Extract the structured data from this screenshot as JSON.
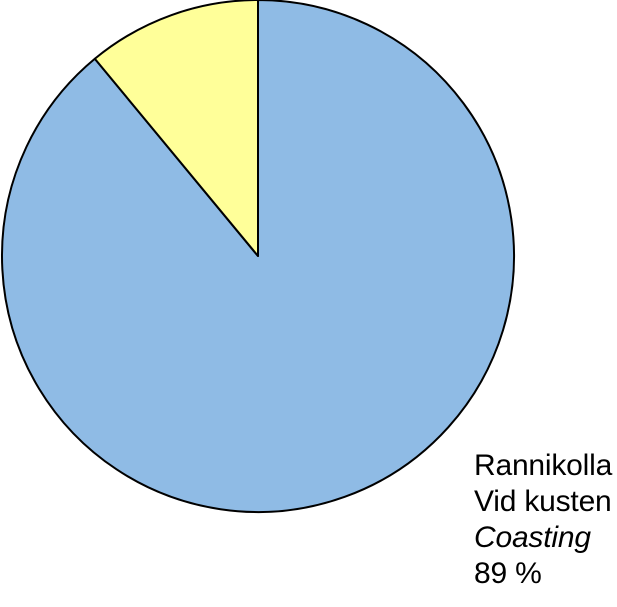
{
  "chart_data": {
    "type": "pie",
    "title": "",
    "start_angle_deg": 0,
    "direction": "clockwise",
    "slices": [
      {
        "value": 89,
        "color": "#8FBBE5",
        "label_lines": [
          "Rannikolla",
          "Vid kusten",
          "Coasting",
          "89 %"
        ]
      },
      {
        "value": 11,
        "color": "#FFFF99"
      }
    ],
    "stroke_color": "#000000"
  }
}
